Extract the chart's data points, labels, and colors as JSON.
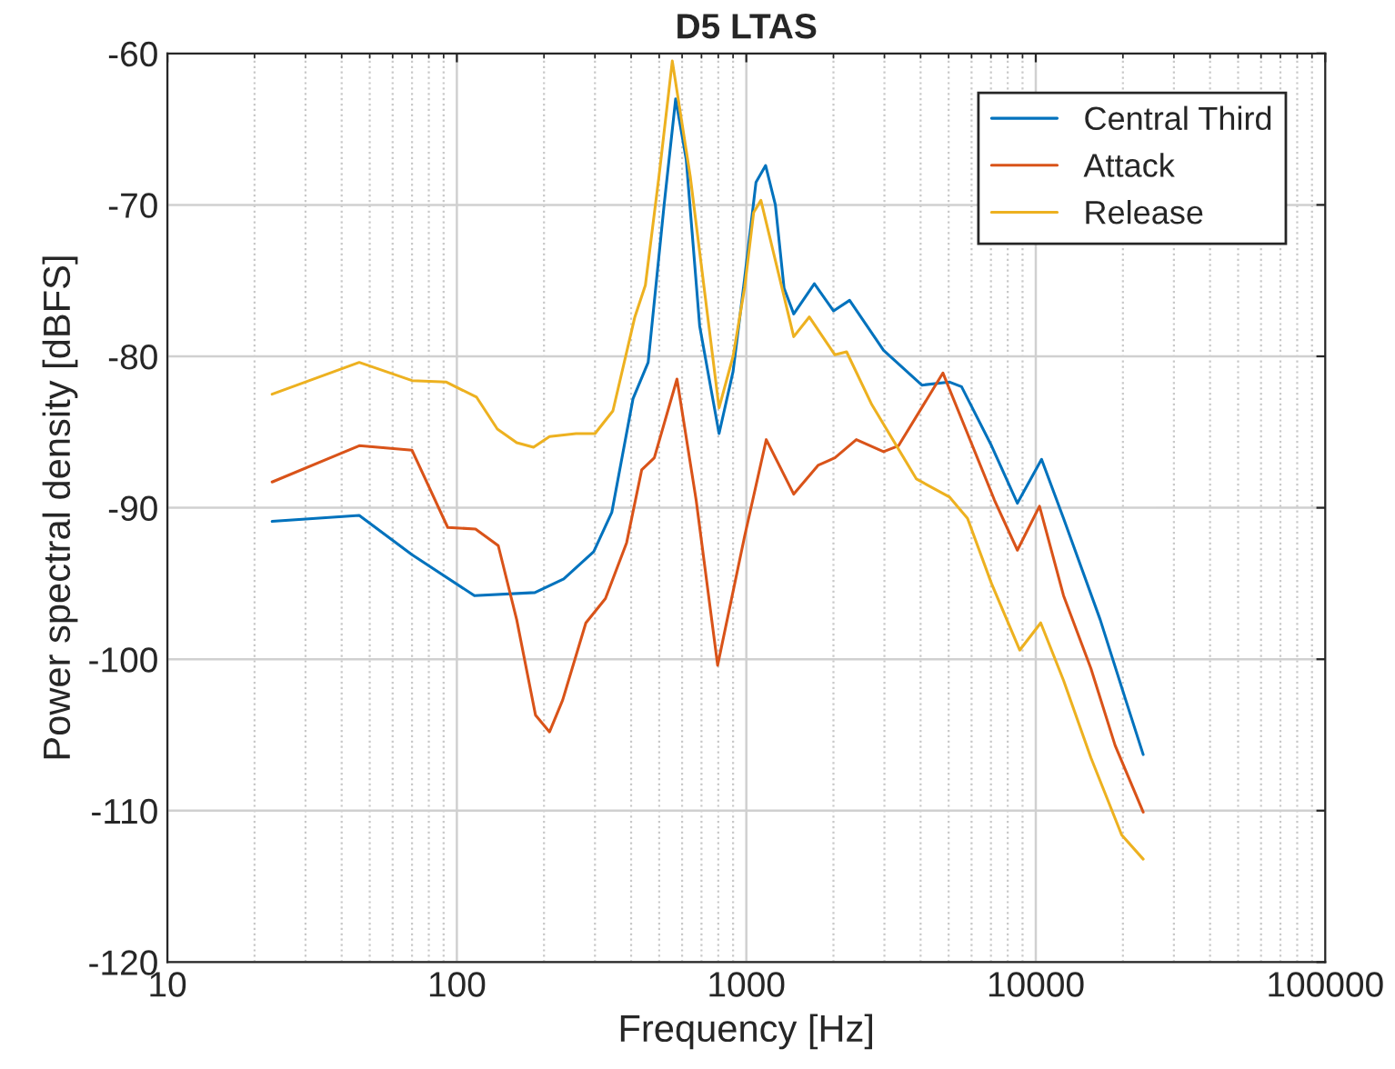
{
  "chart_data": {
    "type": "line",
    "title": "D5 LTAS",
    "xlabel": "Frequency [Hz]",
    "ylabel": "Power spectral density [dBFS]",
    "log": "x",
    "xlim": [
      10,
      100000
    ],
    "xticks": [
      10,
      100,
      1000,
      10000,
      100000
    ],
    "ylim": [
      -120,
      -60
    ],
    "yticks": [
      -120,
      -110,
      -100,
      -90,
      -80,
      -70,
      -60
    ],
    "grid": true,
    "legend": "top right",
    "marker": "none",
    "line_style": "solid",
    "series": [
      {
        "name": "Central Third",
        "color": "#0072bd",
        "x": [
          23,
          46,
          70,
          115,
          186,
          234,
          297,
          343,
          406,
          458,
          520,
          570,
          620,
          690,
          805,
          900,
          986,
          1080,
          1166,
          1260,
          1350,
          1458,
          1718,
          2002,
          2274,
          2979,
          4040,
          5040,
          5540,
          7030,
          8640,
          10470,
          12470,
          16700,
          20300,
          23500
        ],
        "values": [
          -90.9,
          -90.5,
          -93.1,
          -95.8,
          -95.6,
          -94.7,
          -92.9,
          -90.3,
          -82.8,
          -80.4,
          -70,
          -63,
          -67,
          -78,
          -85.1,
          -81,
          -74.9,
          -68.5,
          -67.4,
          -70,
          -75.5,
          -77.2,
          -75.2,
          -77.0,
          -76.3,
          -79.6,
          -81.9,
          -81.7,
          -82.0,
          -85.9,
          -89.7,
          -86.8,
          -90.7,
          -97.4,
          -102.5,
          -106.3
        ]
      },
      {
        "name": "Attack",
        "color": "#d95319",
        "x": [
          23,
          46,
          70,
          93,
          116,
          139,
          161,
          187,
          209,
          232,
          279,
          326,
          386,
          435,
          481,
          576,
          671,
          796,
          986,
          1172,
          1458,
          1769,
          2023,
          2399,
          2979,
          3357,
          4778,
          5810,
          7200,
          8640,
          10300,
          12470,
          15500,
          18800,
          23500
        ],
        "values": [
          -88.3,
          -85.9,
          -86.2,
          -91.3,
          -91.4,
          -92.5,
          -97.4,
          -103.7,
          -104.8,
          -102.7,
          -97.6,
          -96.0,
          -92.3,
          -87.5,
          -86.7,
          -81.5,
          -89.5,
          -100.4,
          -91.9,
          -85.5,
          -89.1,
          -87.2,
          -86.7,
          -85.5,
          -86.3,
          -85.9,
          -81.1,
          -85.1,
          -89.5,
          -92.8,
          -89.9,
          -95.8,
          -100.6,
          -105.7,
          -110.1
        ]
      },
      {
        "name": "Release",
        "color": "#edb120",
        "x": [
          23,
          46,
          70,
          92,
          117,
          138,
          161,
          184,
          209,
          258,
          300,
          346,
          412,
          448,
          500,
          555,
          640,
          805,
          900,
          986,
          1060,
          1123,
          1458,
          1650,
          2023,
          2220,
          2715,
          3870,
          5040,
          5810,
          7030,
          8800,
          10400,
          12470,
          15500,
          19800,
          23500
        ],
        "values": [
          -82.5,
          -80.4,
          -81.6,
          -81.7,
          -82.7,
          -84.8,
          -85.7,
          -86.0,
          -85.3,
          -85.1,
          -85.1,
          -83.6,
          -77.4,
          -75.3,
          -68,
          -60.5,
          -68.1,
          -83.4,
          -80,
          -75.5,
          -70.5,
          -69.7,
          -78.7,
          -77.4,
          -79.9,
          -79.7,
          -83.2,
          -88.1,
          -89.3,
          -90.7,
          -95.0,
          -99.4,
          -97.6,
          -101.4,
          -106.5,
          -111.6,
          -113.2
        ]
      }
    ]
  }
}
